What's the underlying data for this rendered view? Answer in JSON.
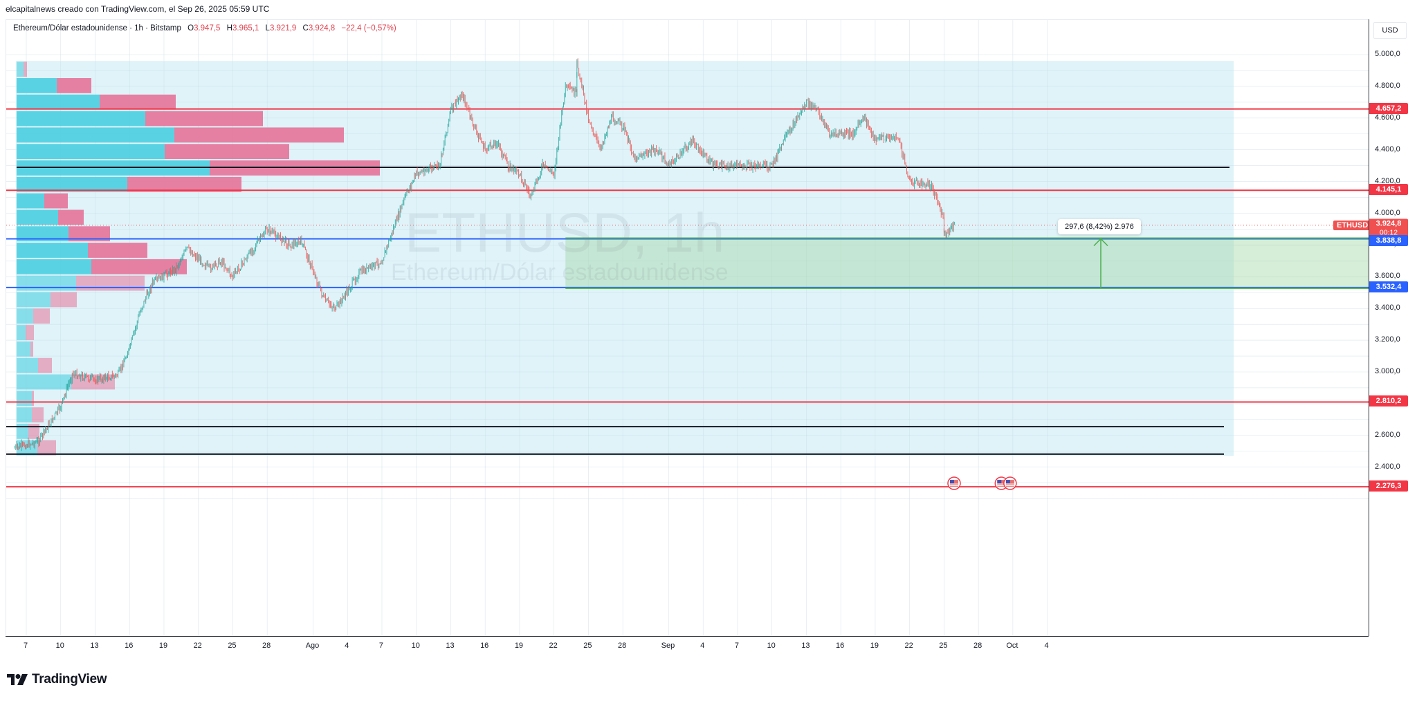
{
  "header": {
    "attribution": "elcapitalnews creado con TradingView.com, el Sep 26, 2025 05:59 UTC"
  },
  "legend": {
    "symbol_desc": "Ethereum/Dólar estadounidense · 1h · Bitstamp",
    "open_key": "O",
    "open": "3.947,5",
    "high_key": "H",
    "high": "3.965,1",
    "low_key": "L",
    "low": "3.921,9",
    "close_key": "C",
    "close": "3.924,8",
    "change": "−22,4 (−0,57%)"
  },
  "watermark": {
    "symbol": "ETHUSD, 1h",
    "name": "Ethereum/Dólar estadounidense"
  },
  "price_axis": {
    "currency": "USD",
    "ticks": [
      "5.000,0",
      "4.800,0",
      "4.600,0",
      "4.400,0",
      "4.200,0",
      "4.000,0",
      "3.800,0",
      "3.600,0",
      "3.400,0",
      "3.200,0",
      "3.000,0",
      "2.800,0",
      "2.600,0",
      "2.400,0"
    ]
  },
  "price_tags": {
    "r1": "4.657,2",
    "r2": "4.145,1",
    "current": "3.924,8",
    "countdown": "00:12",
    "b1": "3.838,8",
    "b2": "3.532,4",
    "r3": "2.810,2",
    "r4": "2.276,3",
    "symbol_label": "ETHUSD"
  },
  "measure_tool": {
    "label": "297,6 (8,42%) 2.976"
  },
  "time_axis": {
    "ticks": [
      "7",
      "10",
      "13",
      "16",
      "19",
      "22",
      "25",
      "28",
      "Ago",
      "4",
      "7",
      "10",
      "13",
      "16",
      "19",
      "22",
      "25",
      "28",
      "Sep",
      "4",
      "7",
      "10",
      "13",
      "16",
      "19",
      "22",
      "25",
      "28",
      "Oct",
      "4"
    ]
  },
  "footer": {
    "brand": "TradingView"
  },
  "colors": {
    "up": "#26a69a",
    "down": "#ef5350",
    "resistance_red": "#f23645",
    "support_blue": "#2962ff",
    "level_black": "#131722",
    "vp_up": "#4dd0e1",
    "vp_down": "#e57399",
    "zone_green": "#4caf50",
    "range_bg": "#dff3f9"
  },
  "chart_data": {
    "type": "candlestick",
    "title": "Ethereum/Dólar estadounidense · 1h · Bitstamp",
    "symbol": "ETHUSD",
    "timeframe": "1h",
    "exchange": "Bitstamp",
    "ohlc_last": {
      "open": 3947.5,
      "high": 3965.1,
      "low": 3921.9,
      "close": 3924.8,
      "change": -22.4,
      "change_pct": -0.57
    },
    "ylabel": "USD",
    "ylim": [
      2250,
      5100
    ],
    "x_range": [
      "Jul 6, 2025",
      "Oct 5, 2025"
    ],
    "approx_close_path": [
      {
        "date": "Jul 6",
        "price": 2520
      },
      {
        "date": "Jul 8",
        "price": 2560
      },
      {
        "date": "Jul 10",
        "price": 2780
      },
      {
        "date": "Jul 11",
        "price": 2990
      },
      {
        "date": "Jul 13",
        "price": 2950
      },
      {
        "date": "Jul 15",
        "price": 2980
      },
      {
        "date": "Jul 16",
        "price": 3150
      },
      {
        "date": "Jul 17",
        "price": 3400
      },
      {
        "date": "Jul 18",
        "price": 3560
      },
      {
        "date": "Jul 20",
        "price": 3650
      },
      {
        "date": "Jul 21",
        "price": 3780
      },
      {
        "date": "Jul 23",
        "price": 3650
      },
      {
        "date": "Jul 24",
        "price": 3700
      },
      {
        "date": "Jul 25",
        "price": 3600
      },
      {
        "date": "Jul 27",
        "price": 3800
      },
      {
        "date": "Jul 28",
        "price": 3900
      },
      {
        "date": "Jul 30",
        "price": 3800
      },
      {
        "date": "Jul 31",
        "price": 3820
      },
      {
        "date": "Aug 2",
        "price": 3450
      },
      {
        "date": "Aug 3",
        "price": 3400
      },
      {
        "date": "Aug 5",
        "price": 3620
      },
      {
        "date": "Aug 7",
        "price": 3700
      },
      {
        "date": "Aug 8",
        "price": 3900
      },
      {
        "date": "Aug 9",
        "price": 4100
      },
      {
        "date": "Aug 10",
        "price": 4250
      },
      {
        "date": "Aug 12",
        "price": 4300
      },
      {
        "date": "Aug 13",
        "price": 4650
      },
      {
        "date": "Aug 14",
        "price": 4750
      },
      {
        "date": "Aug 15",
        "price": 4550
      },
      {
        "date": "Aug 16",
        "price": 4400
      },
      {
        "date": "Aug 17",
        "price": 4450
      },
      {
        "date": "Aug 18",
        "price": 4300
      },
      {
        "date": "Aug 19",
        "price": 4250
      },
      {
        "date": "Aug 20",
        "price": 4100
      },
      {
        "date": "Aug 21",
        "price": 4300
      },
      {
        "date": "Aug 22",
        "price": 4250
      },
      {
        "date": "Aug 23",
        "price": 4800
      },
      {
        "date": "Aug 24",
        "price": 4750
      },
      {
        "date": "Aug 24",
        "price": 4950
      },
      {
        "date": "Aug 25",
        "price": 4600
      },
      {
        "date": "Aug 26",
        "price": 4400
      },
      {
        "date": "Aug 27",
        "price": 4600
      },
      {
        "date": "Aug 28",
        "price": 4550
      },
      {
        "date": "Aug 29",
        "price": 4350
      },
      {
        "date": "Aug 31",
        "price": 4400
      },
      {
        "date": "Sep 1",
        "price": 4300
      },
      {
        "date": "Sep 3",
        "price": 4450
      },
      {
        "date": "Sep 5",
        "price": 4300
      },
      {
        "date": "Sep 7",
        "price": 4300
      },
      {
        "date": "Sep 10",
        "price": 4300
      },
      {
        "date": "Sep 11",
        "price": 4450
      },
      {
        "date": "Sep 13",
        "price": 4700
      },
      {
        "date": "Sep 14",
        "price": 4650
      },
      {
        "date": "Sep 15",
        "price": 4500
      },
      {
        "date": "Sep 17",
        "price": 4500
      },
      {
        "date": "Sep 18",
        "price": 4600
      },
      {
        "date": "Sep 19",
        "price": 4470
      },
      {
        "date": "Sep 21",
        "price": 4480
      },
      {
        "date": "Sep 22",
        "price": 4200
      },
      {
        "date": "Sep 23",
        "price": 4180
      },
      {
        "date": "Sep 24",
        "price": 4170
      },
      {
        "date": "Sep 25",
        "price": 3950
      },
      {
        "date": "Sep 25",
        "price": 3860
      },
      {
        "date": "Sep 26",
        "price": 3924.8
      }
    ],
    "horizontal_levels": [
      {
        "price": 4657.2,
        "color": "red",
        "labeled": true
      },
      {
        "price": 4290,
        "color": "black",
        "labeled": false
      },
      {
        "price": 4145.1,
        "color": "red",
        "labeled": true
      },
      {
        "price": 3838.8,
        "color": "blue",
        "labeled": true
      },
      {
        "price": 3532.4,
        "color": "blue",
        "labeled": true
      },
      {
        "price": 2810.2,
        "color": "red",
        "labeled": true
      },
      {
        "price": 2655,
        "color": "black",
        "labeled": false
      },
      {
        "price": 2482,
        "color": "black",
        "labeled": false
      },
      {
        "price": 2276.3,
        "color": "red",
        "labeled": true
      }
    ],
    "zone": {
      "top": 3838.8,
      "bottom": 3532.4,
      "from": "Aug 23",
      "color": "green",
      "measure": "297,6 (8,42%) 2.976"
    },
    "volume_profile": {
      "bins_top_to_bottom": [
        {
          "up": 10,
          "down": 5
        },
        {
          "up": 58,
          "down": 50
        },
        {
          "up": 120,
          "down": 110
        },
        {
          "up": 186,
          "down": 170
        },
        {
          "up": 228,
          "down": 245
        },
        {
          "up": 214,
          "down": 180
        },
        {
          "up": 279,
          "down": 246
        },
        {
          "up": 160,
          "down": 165
        },
        {
          "up": 40,
          "down": 34
        },
        {
          "up": 60,
          "down": 37
        },
        {
          "up": 75,
          "down": 60
        },
        {
          "up": 103,
          "down": 86
        },
        {
          "up": 108,
          "down": 138
        },
        {
          "up": 86,
          "down": 99
        },
        {
          "up": 49,
          "down": 38
        },
        {
          "up": 24,
          "down": 24
        },
        {
          "up": 13,
          "down": 12
        },
        {
          "up": 20,
          "down": 4
        },
        {
          "up": 31,
          "down": 20
        },
        {
          "up": 79,
          "down": 63
        },
        {
          "up": 22,
          "down": 3
        },
        {
          "up": 22,
          "down": 17
        },
        {
          "up": 17,
          "down": 16
        },
        {
          "up": 30,
          "down": 27
        }
      ]
    },
    "events": [
      {
        "date": "Sep 26",
        "type": "us-economic-event"
      },
      {
        "date": "Sep 30",
        "type": "us-economic-event"
      },
      {
        "date": "Oct 1",
        "type": "us-economic-event"
      }
    ],
    "grid": true,
    "legend_position": "top-left"
  }
}
